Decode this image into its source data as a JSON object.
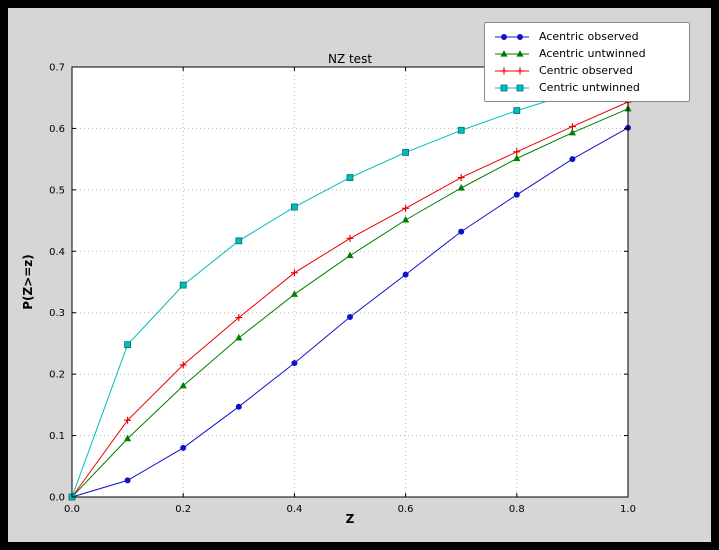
{
  "window": {
    "background_color": "#000000",
    "figure_face_color": "#d6d6d6",
    "axes_face_color": "#ffffff",
    "grid_color": "#b8b8b8"
  },
  "chart_data": {
    "type": "line",
    "title": "NZ test",
    "xlabel": "Z",
    "ylabel": "P(Z>=z)",
    "xlim": [
      0.0,
      1.0
    ],
    "ylim": [
      0.0,
      0.7
    ],
    "xticks": [
      0.0,
      0.2,
      0.4,
      0.6,
      0.8,
      1.0
    ],
    "yticks": [
      0.0,
      0.1,
      0.2,
      0.3,
      0.4,
      0.5,
      0.6,
      0.7
    ],
    "grid": true,
    "legend_position": "upper right",
    "x": [
      0.0,
      0.1,
      0.2,
      0.3,
      0.4,
      0.5,
      0.6,
      0.7,
      0.8,
      0.9,
      1.0
    ],
    "series": [
      {
        "name": "Acentric observed",
        "color": "#1111cc",
        "marker": "circle",
        "values": [
          0.0,
          0.027,
          0.08,
          0.147,
          0.218,
          0.293,
          0.362,
          0.432,
          0.492,
          0.55,
          0.601
        ]
      },
      {
        "name": "Acentric untwinned",
        "color": "#008000",
        "marker": "triangle",
        "values": [
          0.0,
          0.095,
          0.181,
          0.259,
          0.33,
          0.393,
          0.451,
          0.503,
          0.551,
          0.593,
          0.632
        ]
      },
      {
        "name": "Centric observed",
        "color": "#ee0000",
        "marker": "plus",
        "values": [
          0.0,
          0.125,
          0.215,
          0.292,
          0.365,
          0.421,
          0.47,
          0.52,
          0.562,
          0.603,
          0.643
        ]
      },
      {
        "name": "Centric untwinned",
        "color": "#00bcbc",
        "marker": "square",
        "edge": "#007070",
        "values": [
          0.0,
          0.248,
          0.345,
          0.417,
          0.472,
          0.52,
          0.561,
          0.597,
          0.629,
          0.657,
          0.683
        ]
      }
    ]
  }
}
